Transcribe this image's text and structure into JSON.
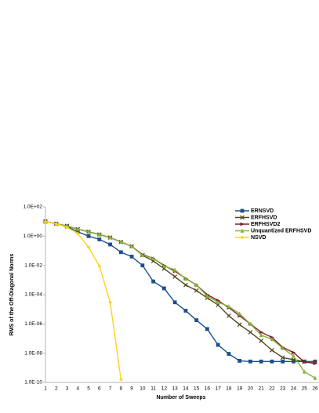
{
  "chart_data": {
    "type": "line",
    "xlabel": "Number of Sweeps",
    "ylabel": "RMS of the Off-Diagonal Norms",
    "categories": [
      "1",
      "2",
      "3",
      "4",
      "5",
      "6",
      "7",
      "8",
      "9",
      "10",
      "11",
      "12",
      "13",
      "14",
      "15",
      "16",
      "17",
      "18",
      "19",
      "20",
      "21",
      "22",
      "23",
      "24",
      "25",
      "26"
    ],
    "log_y": true,
    "ylim": [
      1e-10,
      100
    ],
    "yticks": [
      {
        "value": 100,
        "label": "1.0E+02"
      },
      {
        "value": 1,
        "label": "1.0E+00"
      },
      {
        "value": 0.01,
        "label": "1.0E-02"
      },
      {
        "value": 0.0001,
        "label": "1.0E-04"
      },
      {
        "value": 1e-06,
        "label": "1.0E-06"
      },
      {
        "value": 1e-08,
        "label": "1.0E-08"
      },
      {
        "value": 1e-10,
        "label": "1.0E-10"
      }
    ],
    "grid": false,
    "legend": "upper right",
    "series": [
      {
        "name": "ERNSVD",
        "color": "#1c4f8c",
        "marker": "square",
        "values": [
          10,
          7,
          4.5,
          2,
          1,
          0.6,
          0.27,
          0.08,
          0.04,
          0.01,
          0.0008,
          0.00027,
          3e-05,
          8e-06,
          1.8e-06,
          4.5e-07,
          3.7e-08,
          9e-09,
          3e-09,
          2.7e-09,
          2.7e-09,
          2.7e-09,
          2.7e-09,
          2.7e-09,
          2.7e-09,
          2.7e-09
        ]
      },
      {
        "name": "ERFHSVD",
        "color": "#4f4a1e",
        "marker": "x",
        "values": [
          10,
          7,
          5,
          3,
          2,
          1.3,
          0.8,
          0.4,
          0.2,
          0.05,
          0.02,
          0.006,
          0.0017,
          0.00046,
          0.00019,
          6e-05,
          2e-05,
          3.6e-06,
          9e-07,
          2.7e-07,
          7e-08,
          1.6e-08,
          5e-09,
          3.6e-09,
          2.7e-09,
          2.5e-09
        ]
      },
      {
        "name": "ERFHSVD2",
        "color": "#7e1f2e",
        "marker": "triangle-right",
        "values": [
          10,
          7,
          5,
          3,
          2,
          1.3,
          0.8,
          0.4,
          0.2,
          0.055,
          0.03,
          0.01,
          0.004,
          0.0013,
          0.00046,
          0.0001,
          4e-05,
          1.3e-05,
          3.6e-06,
          1e-06,
          2.7e-07,
          1.2e-07,
          2.5e-08,
          1.1e-08,
          2.5e-09,
          2e-09
        ]
      },
      {
        "name": "Unquantized ERFHSVD",
        "color": "#83b53b",
        "marker": "triangle-up",
        "values": [
          10,
          7,
          5,
          3,
          2,
          1.3,
          0.8,
          0.4,
          0.2,
          0.05,
          0.03,
          0.009,
          0.005,
          0.0012,
          0.00046,
          8e-05,
          3e-05,
          1.6e-05,
          5e-06,
          1e-06,
          1.7e-07,
          9e-08,
          2.2e-08,
          6.5e-09,
          5.5e-10,
          2e-10
        ]
      },
      {
        "name": "NSVD",
        "color": "#ffd320",
        "marker": "diamond",
        "values": [
          10,
          7,
          4,
          1.5,
          0.17,
          0.009,
          3e-05,
          1.6e-10,
          null,
          null,
          null,
          null,
          null,
          null,
          null,
          null,
          null,
          null,
          null,
          null,
          null,
          null,
          null,
          null,
          null,
          null
        ]
      }
    ]
  }
}
